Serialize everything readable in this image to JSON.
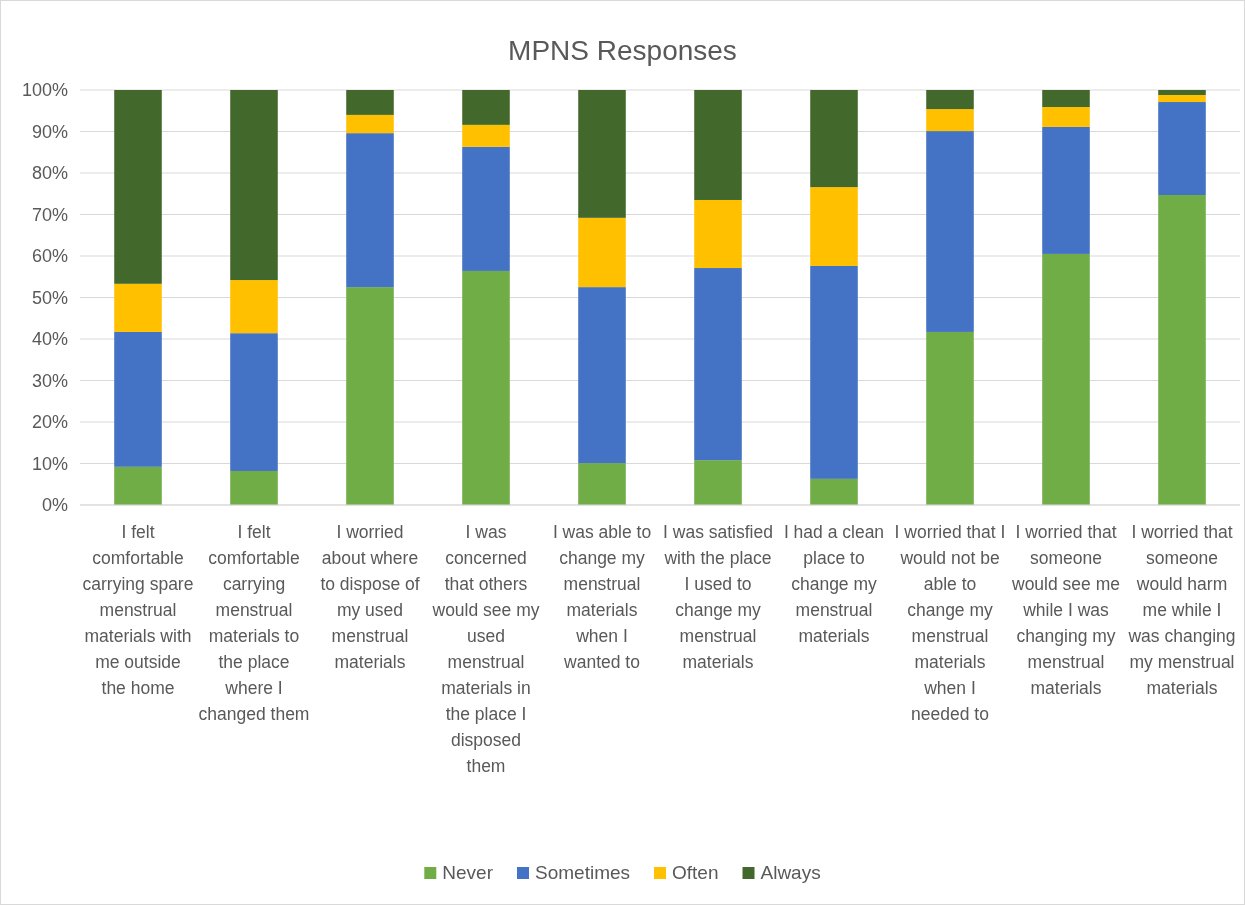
{
  "chart_data": {
    "type": "bar",
    "stacked": true,
    "title": "MPNS Responses",
    "categories": [
      "I felt comfortable carrying spare menstrual materials with me outside the home",
      "I felt comfortable carrying menstrual materials to the place where I changed them",
      "I worried about where to dispose of my used menstrual materials",
      "I was concerned that others would see my used menstrual materials in the place I disposed them",
      "I was able to change my menstrual materials when I wanted to",
      "I was satisfied with the place I used to change my menstrual materials",
      "I had a clean place to change my menstrual materials",
      "I worried that I would not be able to change my menstrual materials when I needed to",
      "I worried that someone would see me while I was changing my menstrual materials",
      "I worried that someone would harm me while I was changing my menstrual materials"
    ],
    "series": [
      {
        "name": "Never",
        "color": "#70ad47",
        "values": [
          9.2,
          8.2,
          52.5,
          56.4,
          10.1,
          10.8,
          6.3,
          41.7,
          60.5,
          74.7
        ]
      },
      {
        "name": "Sometimes",
        "color": "#4472c4",
        "values": [
          32.5,
          33.2,
          37.1,
          29.9,
          42.4,
          46.3,
          51.3,
          48.4,
          30.6,
          22.4
        ]
      },
      {
        "name": "Often",
        "color": "#ffc000",
        "values": [
          11.6,
          12.8,
          4.4,
          5.3,
          16.7,
          16.4,
          19.0,
          5.3,
          4.8,
          1.7
        ]
      },
      {
        "name": "Always",
        "color": "#43682b",
        "values": [
          46.7,
          45.8,
          6.0,
          8.4,
          30.8,
          26.5,
          23.4,
          4.6,
          4.1,
          1.2
        ]
      }
    ],
    "ylim": [
      0,
      100
    ],
    "yticks": [
      {
        "value": 0,
        "label": "0%"
      },
      {
        "value": 10,
        "label": "10%"
      },
      {
        "value": 20,
        "label": "20%"
      },
      {
        "value": 30,
        "label": "30%"
      },
      {
        "value": 40,
        "label": "40%"
      },
      {
        "value": 50,
        "label": "50%"
      },
      {
        "value": 60,
        "label": "60%"
      },
      {
        "value": 70,
        "label": "70%"
      },
      {
        "value": 80,
        "label": "80%"
      },
      {
        "value": 90,
        "label": "90%"
      },
      {
        "value": 100,
        "label": "100%"
      }
    ],
    "grid": "y",
    "legend": "bottom"
  }
}
